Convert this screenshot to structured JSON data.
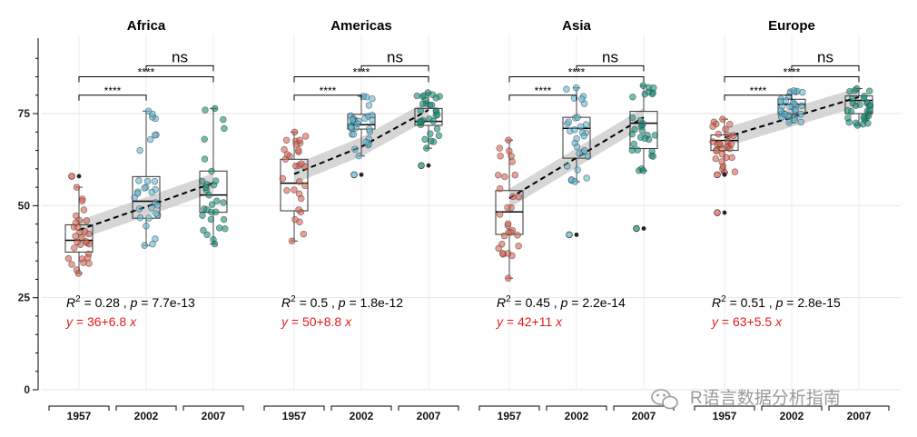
{
  "chart_data": {
    "type": "box",
    "ylim": [
      0,
      95
    ],
    "yticks": [
      0,
      25,
      50,
      75
    ],
    "grid": true,
    "groups": [
      "1957",
      "2002",
      "2007"
    ],
    "colors": {
      "1957": "#e0604c",
      "2002": "#5bb7d6",
      "2007": "#14917c"
    },
    "watermark": "R语言数据分析指南",
    "panels": [
      {
        "title": "Africa",
        "boxes": [
          {
            "group": "1957",
            "q1": 37.4,
            "median": 40.6,
            "q3": 44.8,
            "lower": 31.6,
            "upper": 55.0,
            "outliers": [
              58.0
            ]
          },
          {
            "group": "2002",
            "q1": 46.6,
            "median": 51.2,
            "q3": 57.9,
            "lower": 39.2,
            "upper": 75.7,
            "outliers": []
          },
          {
            "group": "2007",
            "q1": 48.2,
            "median": 52.9,
            "q3": 59.4,
            "lower": 39.6,
            "upper": 76.4,
            "outliers": []
          }
        ],
        "trend": [
          43.4,
          49.7,
          56.2
        ],
        "stat": {
          "r2": "0.28",
          "p": "7.7e-13"
        },
        "eq": {
          "a": "36",
          "b": "6.8"
        },
        "comparisons": [
          {
            "from": "1957",
            "to": "2002",
            "label": "****",
            "y": 80
          },
          {
            "from": "1957",
            "to": "2007",
            "label": "****",
            "y": 85
          },
          {
            "from": "2002",
            "to": "2007",
            "label": "ns",
            "y": 88
          }
        ]
      },
      {
        "title": "Americas",
        "boxes": [
          {
            "group": "1957",
            "q1": 48.6,
            "median": 56.1,
            "q3": 62.6,
            "lower": 40.4,
            "upper": 70.0,
            "outliers": []
          },
          {
            "group": "2002",
            "q1": 70.8,
            "median": 72.0,
            "q3": 74.8,
            "lower": 63.5,
            "upper": 79.7,
            "outliers": [
              58.4
            ]
          },
          {
            "group": "2007",
            "q1": 71.8,
            "median": 72.9,
            "q3": 76.4,
            "lower": 65.6,
            "upper": 80.7,
            "outliers": [
              60.9
            ]
          }
        ],
        "trend": [
          58.6,
          66.0,
          76.0
        ],
        "stat": {
          "r2": "0.5",
          "p": "1.8e-12"
        },
        "eq": {
          "a": "50",
          "b": "8.8"
        },
        "comparisons": [
          {
            "from": "1957",
            "to": "2002",
            "label": "****",
            "y": 80
          },
          {
            "from": "1957",
            "to": "2007",
            "label": "****",
            "y": 85
          },
          {
            "from": "2002",
            "to": "2007",
            "label": "ns",
            "y": 88
          }
        ]
      },
      {
        "title": "Asia",
        "boxes": [
          {
            "group": "1957",
            "q1": 42.2,
            "median": 48.3,
            "q3": 54.1,
            "lower": 30.3,
            "upper": 67.8,
            "outliers": []
          },
          {
            "group": "2002",
            "q1": 62.9,
            "median": 71.0,
            "q3": 74.0,
            "lower": 56.5,
            "upper": 82.0,
            "outliers": [
              42.1
            ]
          },
          {
            "group": "2007",
            "q1": 65.5,
            "median": 72.4,
            "q3": 75.6,
            "lower": 59.5,
            "upper": 82.6,
            "outliers": [
              43.8
            ]
          }
        ],
        "trend": [
          52.0,
          63.0,
          74.0
        ],
        "stat": {
          "r2": "0.45",
          "p": "2.2e-14"
        },
        "eq": {
          "a": "42",
          "b": "11"
        },
        "comparisons": [
          {
            "from": "1957",
            "to": "2002",
            "label": "****",
            "y": 80
          },
          {
            "from": "1957",
            "to": "2007",
            "label": "****",
            "y": 85
          },
          {
            "from": "2002",
            "to": "2007",
            "label": "ns",
            "y": 88
          }
        ]
      },
      {
        "title": "Europe",
        "boxes": [
          {
            "group": "1957",
            "q1": 65.0,
            "median": 67.7,
            "q3": 69.2,
            "lower": 59.0,
            "upper": 73.5,
            "outliers": [
              48.1,
              58.4
            ]
          },
          {
            "group": "2002",
            "q1": 74.9,
            "median": 77.5,
            "q3": 78.9,
            "lower": 72.6,
            "upper": 81.2,
            "outliers": []
          },
          {
            "group": "2007",
            "q1": 75.0,
            "median": 78.6,
            "q3": 79.8,
            "lower": 71.8,
            "upper": 81.8,
            "outliers": []
          }
        ],
        "trend": [
          68.5,
          74.0,
          79.5
        ],
        "stat": {
          "r2": "0.51",
          "p": "2.8e-15"
        },
        "eq": {
          "a": "63",
          "b": "5.5"
        },
        "comparisons": [
          {
            "from": "1957",
            "to": "2002",
            "label": "****",
            "y": 80
          },
          {
            "from": "1957",
            "to": "2007",
            "label": "****",
            "y": 85
          },
          {
            "from": "2002",
            "to": "2007",
            "label": "ns",
            "y": 88
          }
        ]
      }
    ]
  }
}
